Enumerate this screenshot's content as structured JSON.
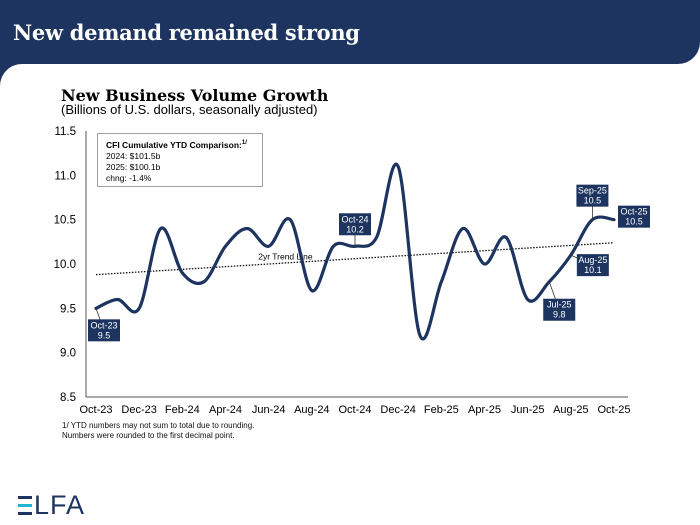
{
  "header": {
    "title": "New demand remained strong"
  },
  "chart_title": "New Business Volume Growth",
  "chart_subtitle": "(Billions of U.S. dollars, seasonally adjusted)",
  "ytd_box": {
    "heading": "CFI Cumulative YTD Comparison:",
    "footnote_ref": "1/",
    "lines": [
      "2024: $101.5b",
      "2025: $100.1b",
      "chng: -1.4%"
    ]
  },
  "footnotes": [
    "1/ YTD numbers may not sum to total due to rounding.",
    "Numbers were rounded to the first decimal point."
  ],
  "logo": {
    "text": "LFA",
    "colors": {
      "primary": "#1c345f",
      "accent": "#1fb8d4"
    }
  },
  "colors": {
    "line": "#1c345f",
    "label_bg": "#1c345f"
  },
  "chart_data": {
    "type": "line",
    "title": "New Business Volume Growth",
    "subtitle": "(Billions of U.S. dollars, seasonally adjusted)",
    "xlabel": "",
    "ylabel": "",
    "ylim": [
      8.5,
      11.5
    ],
    "yticks": [
      "8.5",
      "9.0",
      "9.5",
      "10.0",
      "10.5",
      "11.0",
      "11.5"
    ],
    "ytick_values": [
      8.5,
      9.0,
      9.5,
      10.0,
      10.5,
      11.0,
      11.5
    ],
    "xtick_labels": [
      "Oct-23",
      "Dec-23",
      "Feb-24",
      "Apr-24",
      "Jun-24",
      "Aug-24",
      "Oct-24",
      "Dec-24",
      "Feb-25",
      "Apr-25",
      "Jun-25",
      "Aug-25",
      "Oct-25"
    ],
    "grid": false,
    "x": [
      "Oct-23",
      "Nov-23",
      "Dec-23",
      "Jan-24",
      "Feb-24",
      "Mar-24",
      "Apr-24",
      "May-24",
      "Jun-24",
      "Jul-24",
      "Aug-24",
      "Sep-24",
      "Oct-24",
      "Nov-24",
      "Dec-24",
      "Jan-25",
      "Feb-25",
      "Mar-25",
      "Apr-25",
      "May-25",
      "Jun-25",
      "Jul-25",
      "Aug-25",
      "Sep-25",
      "Oct-25"
    ],
    "series": [
      {
        "name": "New Business Volume",
        "values": [
          9.5,
          9.6,
          9.5,
          10.4,
          9.9,
          9.8,
          10.2,
          10.4,
          10.2,
          10.5,
          9.7,
          10.2,
          10.2,
          10.3,
          11.1,
          9.2,
          9.8,
          10.4,
          10.0,
          10.3,
          9.6,
          9.8,
          10.1,
          10.5,
          10.5
        ]
      },
      {
        "name": "2yr Trend Line",
        "style": "dotted",
        "values_endpoints": [
          9.88,
          10.24
        ]
      }
    ],
    "annotations": [
      {
        "label": "Oct-23",
        "value": "9.5",
        "index": 0
      },
      {
        "label": "Oct-24",
        "value": "10.2",
        "index": 12
      },
      {
        "label": "Jul-25",
        "value": "9.8",
        "index": 21
      },
      {
        "label": "Aug-25",
        "value": "10.1",
        "index": 22
      },
      {
        "label": "Sep-25",
        "value": "10.5",
        "index": 23
      },
      {
        "label": "Oct-25",
        "value": "10.5",
        "index": 24
      }
    ],
    "trend_label": "2yr Trend Line"
  }
}
